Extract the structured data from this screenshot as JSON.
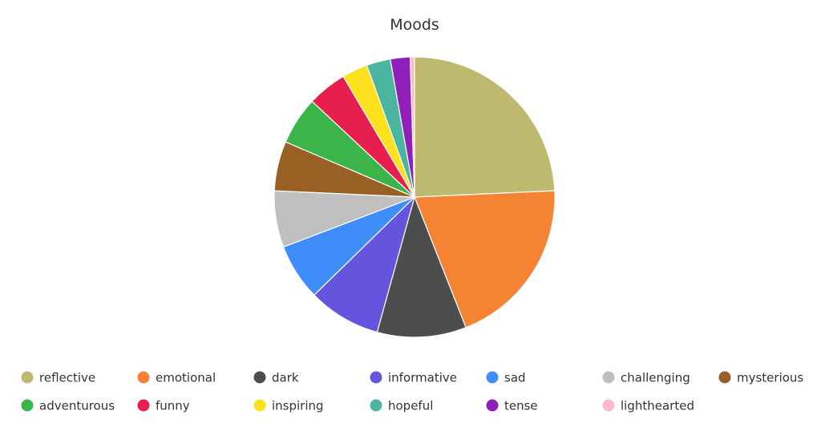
{
  "chart_data": {
    "type": "pie",
    "title": "Moods",
    "legend_position": "bottom",
    "slices": [
      {
        "label": "reflective",
        "value": 24.6,
        "color": "#BDB96F"
      },
      {
        "label": "emotional",
        "value": 20.0,
        "color": "#F48434"
      },
      {
        "label": "dark",
        "value": 10.4,
        "color": "#4D4D4D"
      },
      {
        "label": "informative",
        "value": 8.5,
        "color": "#6454DE"
      },
      {
        "label": "sad",
        "value": 6.6,
        "color": "#3E8DF9"
      },
      {
        "label": "challenging",
        "value": 6.6,
        "color": "#BFBFBF"
      },
      {
        "label": "mysterious",
        "value": 5.8,
        "color": "#996026"
      },
      {
        "label": "adventurous",
        "value": 5.6,
        "color": "#3BB54A"
      },
      {
        "label": "funny",
        "value": 4.6,
        "color": "#E71F4E"
      },
      {
        "label": "inspiring",
        "value": 3.0,
        "color": "#FDE11C"
      },
      {
        "label": "hopeful",
        "value": 2.8,
        "color": "#4CB5A0"
      },
      {
        "label": "tense",
        "value": 2.3,
        "color": "#8F1FB8"
      },
      {
        "label": "lighthearted",
        "value": 0.5,
        "color": "#F9BCC8"
      }
    ]
  }
}
